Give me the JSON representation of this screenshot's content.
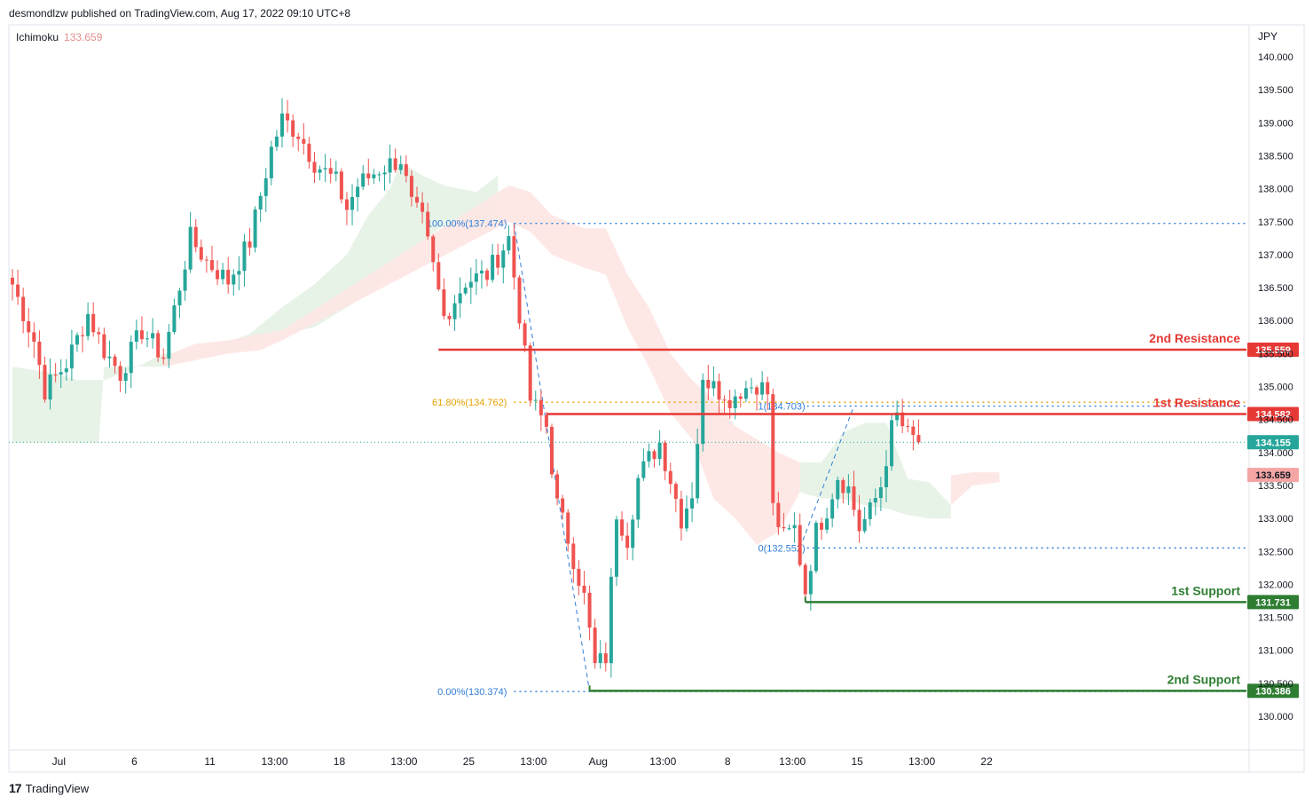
{
  "header": {
    "published_by": "desmondlzw published on TradingView.com, Aug 17, 2022 09:10 UTC+8"
  },
  "indicator": {
    "name": "Ichimoku",
    "value": "133.659"
  },
  "currency": "JPY",
  "footer": {
    "brand": "TradingView",
    "logo_icon": "tradingview-logo-icon"
  },
  "colors": {
    "up": "#26a69a",
    "down": "#ef5350",
    "resistance": "#e53935",
    "support": "#2e7d32",
    "fib": "#2f7ed8",
    "fib_618": "#e6a100",
    "cloud_green": "#e6f2e6",
    "cloud_red": "#fde5e3"
  },
  "chart_data": {
    "type": "candlestick",
    "symbol_unit": "JPY",
    "ylim": [
      129.85,
      140.45
    ],
    "y_ticks": [
      130.0,
      130.5,
      131.0,
      131.5,
      132.0,
      132.5,
      133.0,
      133.5,
      134.0,
      134.5,
      135.0,
      135.5,
      136.0,
      136.5,
      137.0,
      137.5,
      138.0,
      138.5,
      139.0,
      139.5,
      140.0
    ],
    "y_tick_labels": [
      "130.000",
      "130.500",
      "131.000",
      "131.500",
      "132.000",
      "132.500",
      "133.000",
      "133.500",
      "134.000",
      "134.500",
      "135.000",
      "135.500",
      "136.000",
      "136.500",
      "137.000",
      "137.500",
      "138.000",
      "138.500",
      "139.000",
      "139.500",
      "140.000"
    ],
    "x_ticks": [
      {
        "label": "Jul",
        "bar": 4
      },
      {
        "label": "6",
        "bar": 18
      },
      {
        "label": "11",
        "bar": 32
      },
      {
        "label": "13:00",
        "bar": 44
      },
      {
        "label": "18",
        "bar": 56
      },
      {
        "label": "13:00",
        "bar": 68
      },
      {
        "label": "25",
        "bar": 80
      },
      {
        "label": "13:00",
        "bar": 92
      },
      {
        "label": "Aug",
        "bar": 104
      },
      {
        "label": "13:00",
        "bar": 116
      },
      {
        "label": "8",
        "bar": 128
      },
      {
        "label": "13:00",
        "bar": 140
      },
      {
        "label": "15",
        "bar": 152
      },
      {
        "label": "13:00",
        "bar": 164
      },
      {
        "label": "22",
        "bar": 176
      }
    ],
    "anchors": [
      {
        "bar": 0,
        "price": 136.55
      },
      {
        "bar": 4,
        "price": 135.7
      },
      {
        "bar": 6,
        "price": 134.95
      },
      {
        "bar": 10,
        "price": 135.35
      },
      {
        "bar": 14,
        "price": 136.1
      },
      {
        "bar": 17,
        "price": 135.55
      },
      {
        "bar": 20,
        "price": 135.2
      },
      {
        "bar": 24,
        "price": 135.85
      },
      {
        "bar": 28,
        "price": 135.45
      },
      {
        "bar": 33,
        "price": 137.25
      },
      {
        "bar": 36,
        "price": 136.9
      },
      {
        "bar": 40,
        "price": 136.6
      },
      {
        "bar": 44,
        "price": 137.2
      },
      {
        "bar": 48,
        "price": 138.6
      },
      {
        "bar": 50,
        "price": 139.05
      },
      {
        "bar": 53,
        "price": 138.85
      },
      {
        "bar": 56,
        "price": 138.4
      },
      {
        "bar": 60,
        "price": 138.1
      },
      {
        "bar": 62,
        "price": 137.7
      },
      {
        "bar": 64,
        "price": 138.05
      },
      {
        "bar": 68,
        "price": 138.3
      },
      {
        "bar": 72,
        "price": 138.45
      },
      {
        "bar": 74,
        "price": 137.75
      },
      {
        "bar": 76,
        "price": 137.5
      },
      {
        "bar": 78,
        "price": 136.8
      },
      {
        "bar": 80,
        "price": 136.05
      },
      {
        "bar": 84,
        "price": 136.6
      },
      {
        "bar": 88,
        "price": 136.7
      },
      {
        "bar": 92,
        "price": 137.25
      },
      {
        "bar": 94,
        "price": 136.1
      },
      {
        "bar": 96,
        "price": 134.8
      },
      {
        "bar": 99,
        "price": 134.4
      },
      {
        "bar": 101,
        "price": 133.2
      },
      {
        "bar": 103,
        "price": 132.7
      },
      {
        "bar": 106,
        "price": 131.8
      },
      {
        "bar": 108,
        "price": 130.75
      },
      {
        "bar": 110,
        "price": 130.9
      },
      {
        "bar": 112,
        "price": 133.1
      },
      {
        "bar": 114,
        "price": 132.7
      },
      {
        "bar": 116,
        "price": 133.6
      },
      {
        "bar": 118,
        "price": 133.9
      },
      {
        "bar": 120,
        "price": 134.15
      },
      {
        "bar": 122,
        "price": 133.6
      },
      {
        "bar": 124,
        "price": 133.0
      },
      {
        "bar": 126,
        "price": 133.4
      },
      {
        "bar": 128,
        "price": 135.0
      },
      {
        "bar": 130,
        "price": 135.2
      },
      {
        "bar": 132,
        "price": 134.75
      },
      {
        "bar": 135,
        "price": 134.95
      },
      {
        "bar": 138,
        "price": 135.05
      },
      {
        "bar": 140,
        "price": 134.9
      },
      {
        "bar": 141,
        "price": 133.15
      },
      {
        "bar": 143,
        "price": 132.7
      },
      {
        "bar": 145,
        "price": 132.85
      },
      {
        "bar": 147,
        "price": 131.9
      },
      {
        "bar": 149,
        "price": 132.8
      },
      {
        "bar": 151,
        "price": 133.15
      },
      {
        "bar": 153,
        "price": 133.65
      },
      {
        "bar": 155,
        "price": 133.45
      },
      {
        "bar": 157,
        "price": 132.85
      },
      {
        "bar": 159,
        "price": 133.1
      },
      {
        "bar": 161,
        "price": 133.5
      },
      {
        "bar": 163,
        "price": 134.35
      },
      {
        "bar": 164,
        "price": 134.55
      },
      {
        "bar": 166,
        "price": 134.25
      },
      {
        "bar": 168,
        "price": 134.155
      }
    ],
    "total_bars": 169,
    "cloud_segments": [
      {
        "color": "green",
        "points": [
          [
            0,
            135.3,
            134.15
          ],
          [
            8,
            135.2,
            134.15
          ],
          [
            12,
            135.1,
            134.15
          ],
          [
            16,
            135.1,
            134.15
          ],
          [
            17,
            135.1,
            135.3
          ],
          [
            22,
            135.25,
            135.3
          ],
          [
            28,
            135.5,
            135.3
          ],
          [
            36,
            135.55,
            135.45
          ],
          [
            44,
            135.8,
            135.6
          ],
          [
            50,
            136.2,
            135.8
          ],
          [
            56,
            136.55,
            135.9
          ],
          [
            62,
            137.0,
            136.2
          ],
          [
            66,
            137.6,
            136.4
          ],
          [
            70,
            138.0,
            136.7
          ],
          [
            72,
            138.4,
            137.0
          ],
          [
            76,
            138.2,
            137.2
          ],
          [
            80,
            138.05,
            137.45
          ],
          [
            86,
            137.95,
            137.4
          ],
          [
            90,
            138.2,
            137.5
          ]
        ]
      },
      {
        "color": "red",
        "points": [
          [
            28,
            135.45,
            135.3
          ],
          [
            34,
            135.65,
            135.4
          ],
          [
            40,
            135.7,
            135.5
          ],
          [
            46,
            135.8,
            135.55
          ],
          [
            50,
            135.85,
            135.7
          ],
          [
            92,
            138.05,
            137.5
          ],
          [
            96,
            137.95,
            137.35
          ],
          [
            100,
            137.6,
            137.0
          ],
          [
            106,
            137.4,
            136.8
          ],
          [
            110,
            137.4,
            136.7
          ],
          [
            114,
            136.7,
            135.9
          ],
          [
            118,
            136.2,
            135.3
          ],
          [
            122,
            135.5,
            134.6
          ],
          [
            126,
            135.1,
            134.2
          ],
          [
            130,
            134.8,
            133.3
          ],
          [
            134,
            134.4,
            133.0
          ],
          [
            138,
            134.2,
            132.6
          ],
          [
            142,
            134.0,
            132.8
          ],
          [
            146,
            133.85,
            133.4
          ]
        ]
      },
      {
        "color": "green",
        "points": [
          [
            146,
            133.85,
            133.4
          ],
          [
            150,
            133.85,
            133.3
          ],
          [
            154,
            134.3,
            133.3
          ],
          [
            158,
            134.45,
            133.2
          ],
          [
            162,
            134.45,
            133.15
          ],
          [
            166,
            133.6,
            133.05
          ],
          [
            170,
            133.55,
            133.0
          ],
          [
            174,
            133.2,
            133.0
          ]
        ]
      },
      {
        "color": "red",
        "points": [
          [
            174,
            133.65,
            133.2
          ],
          [
            178,
            133.7,
            133.5
          ],
          [
            183,
            133.7,
            133.55
          ]
        ]
      }
    ],
    "horizontal_levels": [
      {
        "label": "2nd Resistance",
        "price": 135.559,
        "price_label": "135.559",
        "kind": "resistance",
        "from_bar": 79
      },
      {
        "label": "1st Resistance",
        "price": 134.582,
        "price_label": "134.582",
        "kind": "resistance",
        "from_bar": 99
      },
      {
        "label": "1st Support",
        "price": 131.731,
        "price_label": "131.731",
        "kind": "support",
        "from_bar": 147
      },
      {
        "label": "2nd Support",
        "price": 130.386,
        "price_label": "130.386",
        "kind": "support",
        "from_bar": 107
      }
    ],
    "price_tags": [
      {
        "price": 134.155,
        "label": "134.155",
        "kind": "last"
      },
      {
        "price": 133.659,
        "label": "133.659",
        "kind": "ichimoku"
      }
    ],
    "fib_retracement_1": {
      "from_bar": 93,
      "to_bar": 107,
      "levels": [
        {
          "label": "100.00%(137.474)",
          "price": 137.474
        },
        {
          "label": "61.80%(134.762)",
          "price": 134.762
        },
        {
          "label": "0.00%(130.374)",
          "price": 130.374
        }
      ]
    },
    "fib_retracement_2": {
      "from_bar": 146,
      "to_bar": 156,
      "levels": [
        {
          "label": "1(134.703)",
          "price": 134.703
        },
        {
          "label": "0(132.552)",
          "price": 132.552
        }
      ]
    }
  }
}
